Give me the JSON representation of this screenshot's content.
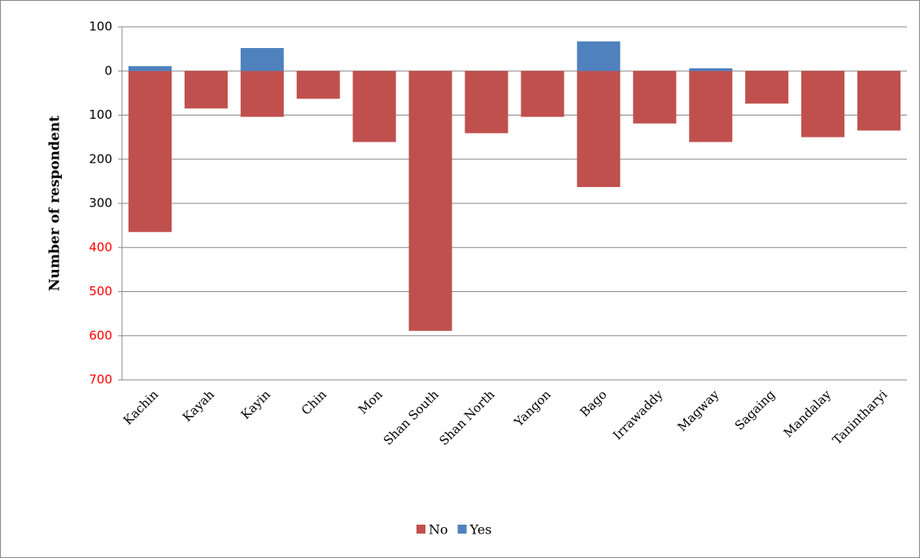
{
  "chart_data": {
    "type": "diverging-bar",
    "y_label": "Number of respondent",
    "categories": [
      "Kachin",
      "Kayah",
      "Kayin",
      "Chin",
      "Mon",
      "Shan South",
      "Shan North",
      "Yangon",
      "Bago",
      "Irrawaddy",
      "Magway",
      "Sagaing",
      "Mandalay",
      "Tanintharyi"
    ],
    "series": [
      {
        "name": "No",
        "color": "#c0504d",
        "values": [
          -365,
          -85,
          -104,
          -63,
          -161,
          -589,
          -141,
          -104,
          -263,
          -119,
          -161,
          -74,
          -150,
          -135
        ]
      },
      {
        "name": "Yes",
        "color": "#4f81bd",
        "values": [
          11,
          0,
          52,
          0,
          0,
          0,
          0,
          0,
          67,
          0,
          6,
          0,
          0,
          0
        ]
      }
    ],
    "ylim": [
      -700,
      100
    ],
    "yticks": [
      100,
      0,
      {
        "value": -100,
        "label": "100"
      },
      {
        "value": -200,
        "label": "200"
      },
      {
        "value": -300,
        "label": "300"
      },
      {
        "value": -400,
        "label": "400"
      },
      {
        "value": -500,
        "label": "500"
      },
      {
        "value": -600,
        "label": "600"
      },
      {
        "value": -700,
        "label": "700"
      }
    ],
    "ytick_colors": [
      "#000000",
      "#000000",
      "#000000",
      "#000000",
      "#000000",
      "#ff0000",
      "#ff0000",
      "#ff0000",
      "#ff0000"
    ],
    "grid": true,
    "legend": "bottom"
  }
}
